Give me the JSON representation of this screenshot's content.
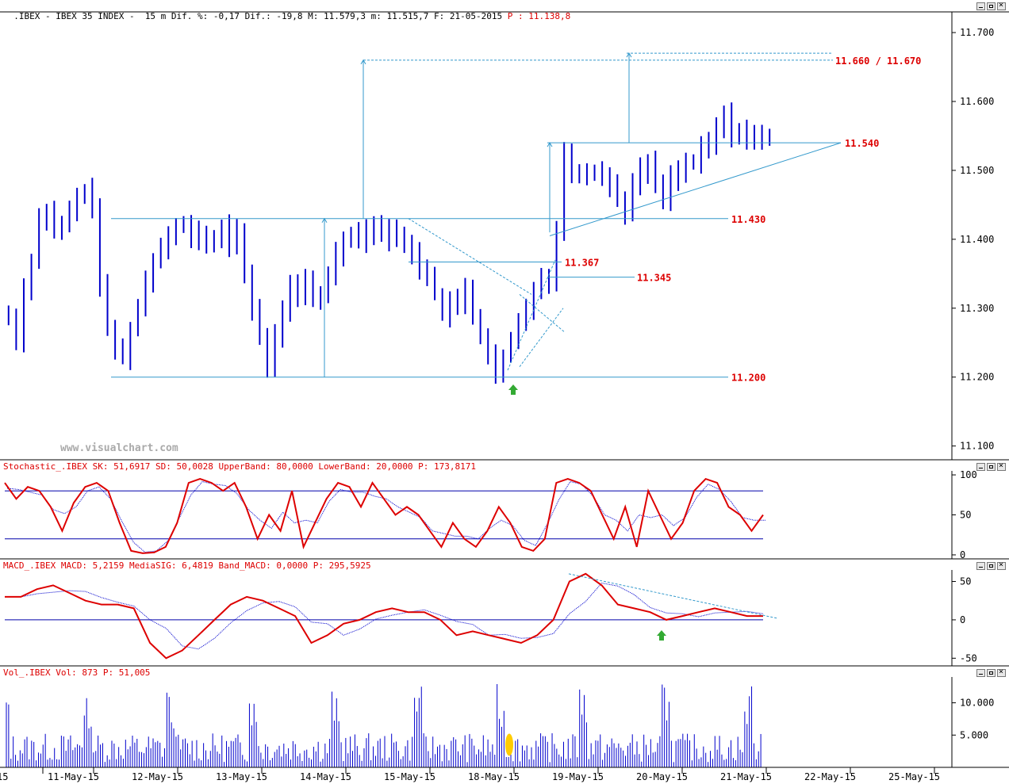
{
  "price_panel": {
    "title": ".IBEX - IBEX 35 INDEX -  15 m Dif. %: -0,17 Dif.: -19,8 M: 11.579,3 m: 11.515,7 F: 21-05-2015",
    "title_p": " P : 11.138,8",
    "watermark": "www.visualchart.com"
  },
  "stoch_panel": {
    "title": "Stochastic_.IBEX SK: 51,6917 SD: 50,0028 UpperBand: 80,0000 LowerBand: 20,0000 P: 173,8171"
  },
  "macd_panel": {
    "title": "MACD_.IBEX MACD: 5,2159 MediaSIG: 6,4819 Band_MACD: 0,0000 P: 295,5925"
  },
  "vol_panel": {
    "title": "Vol_.IBEX Vol: 873 P: 51,005"
  },
  "colors": {
    "price": "#0000cc",
    "stoch_line": "#dd0000",
    "level_line": "#3399cc",
    "label_red": "#dd0000",
    "arrow_green": "#33aa33",
    "volume_highlight": "#ffcc00"
  },
  "chart_data": [
    {
      "type": "candlestick",
      "instrument": "IBEX 35 INDEX",
      "interval": "15 m",
      "ylim": [
        11080,
        11730
      ],
      "y_ticks": [
        "11.700",
        "11.600",
        "11.500",
        "11.400",
        "11.300",
        "11.200",
        "11.100"
      ],
      "x_ticks": [
        "15",
        "11-May-15",
        "12-May-15",
        "13-May-15",
        "14-May-15",
        "15-May-15",
        "18-May-15",
        "19-May-15",
        "20-May-15",
        "21-May-15",
        "22-May-15",
        "25-May-15"
      ],
      "session_close_path": [
        [
          "11-May-15",
          [
            11290,
            11250,
            11330,
            11370,
            11430,
            11440,
            11410,
            11420,
            11440,
            11460,
            11470,
            11450
          ]
        ],
        [
          "12-May-15",
          [
            11330,
            11270,
            11240,
            11230,
            11270,
            11300,
            11340,
            11370,
            11390,
            11410,
            11420,
            11420
          ]
        ],
        [
          "13-May-15",
          [
            11400,
            11410,
            11390,
            11400,
            11420,
            11390,
            11410,
            11350,
            11300,
            11260,
            11210,
            11260
          ]
        ],
        [
          "14-May-15",
          [
            11300,
            11330,
            11320,
            11340,
            11310,
            11320,
            11350,
            11380,
            11400,
            11410,
            11400,
            11420
          ]
        ],
        [
          "15-May-15",
          [
            11410,
            11420,
            11400,
            11410,
            11390,
            11380,
            11360,
            11350,
            11320,
            11290,
            11310,
            11300
          ]
        ],
        [
          "18-May-15",
          [
            11330,
            11290,
            11260,
            11230,
            11200,
            11230,
            11250,
            11280,
            11300,
            11330,
            11345,
            11340
          ]
        ],
        [
          "19-May-15",
          [
            11410,
            11530,
            11500,
            11490,
            11500,
            11500,
            11490,
            11480,
            11460,
            11440,
            11480,
            11500
          ]
        ],
        [
          "20-May-15",
          [
            11510,
            11480,
            11460,
            11490,
            11500,
            11510,
            11510,
            11530,
            11540,
            11560,
            11580,
            11550
          ]
        ],
        [
          "21-May-15",
          [
            11560,
            11550,
            11540,
            11550,
            11550
          ]
        ]
      ],
      "annotations": [
        {
          "label": "11.660 / 11.670",
          "value": 11660
        },
        {
          "label": "11.540",
          "value": 11540
        },
        {
          "label": "11.430",
          "value": 11430
        },
        {
          "label": "11.367",
          "value": 11367
        },
        {
          "label": "11.345",
          "value": 11345
        },
        {
          "label": "11.200",
          "value": 11200
        }
      ]
    },
    {
      "type": "line",
      "name": "Stochastic",
      "ylim": [
        -5,
        105
      ],
      "y_ticks": [
        "100",
        "50",
        "0"
      ],
      "bands": [
        80,
        20
      ],
      "sk_path": [
        90,
        70,
        85,
        80,
        60,
        30,
        65,
        85,
        90,
        80,
        40,
        5,
        2,
        3,
        10,
        40,
        90,
        95,
        90,
        80,
        90,
        60,
        20,
        50,
        30,
        80,
        10,
        40,
        70,
        90,
        85,
        60,
        90,
        70,
        50,
        60,
        50,
        30,
        10,
        40,
        20,
        10,
        30,
        60,
        40,
        10,
        5,
        20,
        90,
        95,
        90,
        80,
        50,
        20,
        60,
        10,
        80,
        50,
        20,
        40,
        80,
        95,
        90,
        60,
        50,
        30,
        50
      ]
    },
    {
      "type": "line",
      "name": "MACD",
      "ylim": [
        -60,
        65
      ],
      "y_ticks": [
        "50",
        "0",
        "-50"
      ],
      "band": 0,
      "macd_path": [
        30,
        30,
        40,
        45,
        35,
        25,
        20,
        20,
        15,
        -30,
        -50,
        -40,
        -20,
        0,
        20,
        30,
        25,
        15,
        5,
        -30,
        -20,
        -5,
        0,
        10,
        15,
        10,
        10,
        0,
        -20,
        -15,
        -20,
        -25,
        -30,
        -20,
        0,
        50,
        60,
        45,
        20,
        15,
        10,
        0,
        5,
        10,
        15,
        10,
        5,
        5
      ]
    },
    {
      "type": "bar",
      "name": "Vol",
      "ylim": [
        0,
        14000
      ],
      "y_ticks": [
        "10.000",
        "5.000"
      ]
    }
  ]
}
